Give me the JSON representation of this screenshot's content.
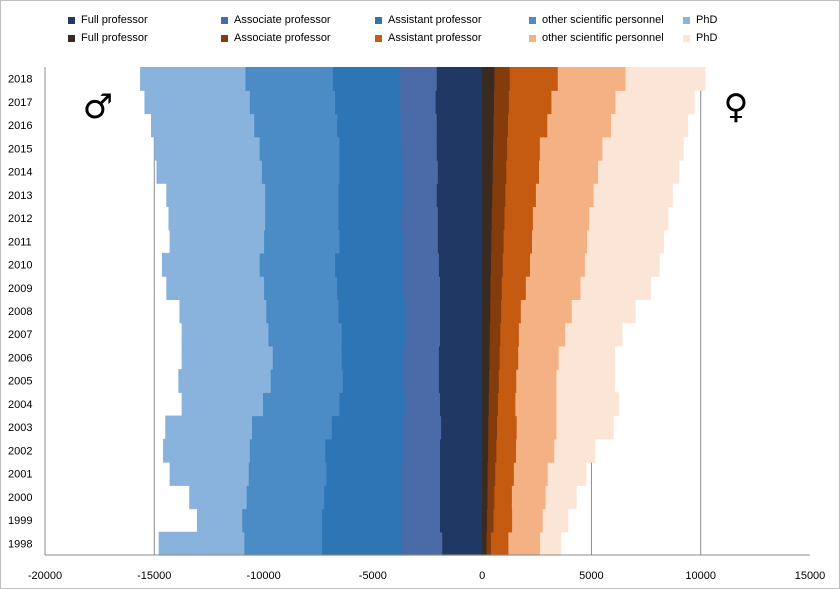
{
  "chart_data": {
    "type": "bar",
    "orientation": "horizontal",
    "stacking": "diverging (men negative, women positive)",
    "categories": [
      "1998",
      "1999",
      "2000",
      "2001",
      "2002",
      "2003",
      "2004",
      "2005",
      "2006",
      "2007",
      "2008",
      "2009",
      "2010",
      "2011",
      "2012",
      "2013",
      "2014",
      "2015",
      "2016",
      "2017",
      "2018"
    ],
    "xlim": [
      -20000,
      15000
    ],
    "x_ticks": [
      -20000,
      -15000,
      -10000,
      -5000,
      0,
      5000,
      10000,
      15000
    ],
    "grid": "vertical gridlines at -15000, -10000, -5000, 5000, 10000",
    "legend_position": "top",
    "symbols": {
      "men": "♂",
      "women": "♀"
    },
    "series": [
      {
        "group": "men",
        "name": "Full professor",
        "color": "#1f3864",
        "values": [
          -1850,
          -1950,
          -1950,
          -1950,
          -1950,
          -1900,
          -1950,
          -2000,
          -2000,
          -1950,
          -1950,
          -1950,
          -2000,
          -2050,
          -2050,
          -2100,
          -2050,
          -2100,
          -2100,
          -2150,
          -2100
        ]
      },
      {
        "group": "men",
        "name": "Associate professor",
        "color": "#4a6aa8",
        "values": [
          -1850,
          -1750,
          -1750,
          -1750,
          -1700,
          -1700,
          -1600,
          -1650,
          -1650,
          -1600,
          -1600,
          -1650,
          -1600,
          -1600,
          -1650,
          -1550,
          -1600,
          -1600,
          -1650,
          -1650,
          -1700
        ]
      },
      {
        "group": "men",
        "name": "Assistant professor",
        "color": "#2e75b6",
        "values": [
          -3650,
          -3650,
          -3550,
          -3450,
          -3550,
          -3300,
          -3000,
          -2750,
          -2800,
          -2900,
          -3050,
          -3050,
          -3150,
          -2900,
          -2900,
          -2950,
          -2900,
          -2850,
          -2900,
          -2950,
          -3050
        ]
      },
      {
        "group": "men",
        "name": "other scientific personnel",
        "color": "#4b8bc6",
        "values": [
          -3550,
          -3650,
          -3550,
          -3550,
          -3450,
          -3650,
          -3500,
          -3300,
          -3150,
          -3350,
          -3300,
          -3350,
          -3450,
          -3450,
          -3350,
          -3350,
          -3550,
          -3650,
          -3800,
          -3900,
          -4000
        ]
      },
      {
        "group": "men",
        "name": "PhD",
        "color": "#89b2dc",
        "values": [
          -3900,
          -2050,
          -2600,
          -3600,
          -3950,
          -3950,
          -3700,
          -4200,
          -4150,
          -3950,
          -3950,
          -4450,
          -4450,
          -4300,
          -4400,
          -4500,
          -4800,
          -4800,
          -4700,
          -4800,
          -4800
        ]
      },
      {
        "group": "women",
        "name": "Full professor",
        "color": "#3b2a1f",
        "values": [
          200,
          220,
          240,
          250,
          270,
          280,
          300,
          320,
          340,
          350,
          370,
          380,
          400,
          420,
          440,
          460,
          480,
          500,
          520,
          540,
          560
        ]
      },
      {
        "group": "women",
        "name": "Associate professor",
        "color": "#843c0c",
        "values": [
          200,
          300,
          320,
          350,
          380,
          400,
          420,
          440,
          460,
          480,
          500,
          520,
          540,
          560,
          580,
          600,
          620,
          640,
          660,
          680,
          700
        ]
      },
      {
        "group": "women",
        "name": "Assistant professor",
        "color": "#c55a11",
        "values": [
          800,
          850,
          800,
          850,
          900,
          900,
          800,
          800,
          850,
          850,
          900,
          1100,
          1250,
          1300,
          1300,
          1400,
          1500,
          1500,
          1800,
          1950,
          2200
        ]
      },
      {
        "group": "women",
        "name": "other scientific personnel",
        "color": "#f4b183",
        "values": [
          1450,
          1400,
          1540,
          1550,
          1750,
          1820,
          1880,
          1840,
          1850,
          2120,
          2330,
          2500,
          2510,
          2520,
          2580,
          2640,
          2700,
          2860,
          2920,
          2930,
          3100
        ]
      },
      {
        "group": "women",
        "name": "PhD",
        "color": "#fbe5d6",
        "values": [
          950,
          1150,
          1400,
          1750,
          1850,
          2600,
          2850,
          2650,
          2550,
          2600,
          2900,
          3200,
          3400,
          3500,
          3600,
          3600,
          3700,
          3700,
          3500,
          3600,
          3640
        ]
      }
    ]
  }
}
